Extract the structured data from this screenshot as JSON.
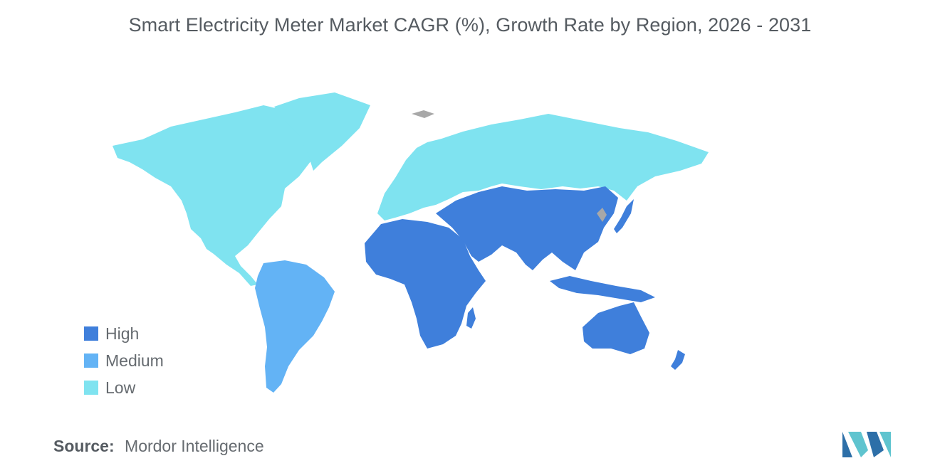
{
  "title": "Smart Electricity Meter Market CAGR (%), Growth Rate by Region, 2026 - 2031",
  "legend": [
    {
      "label": "High",
      "color": "#3f7fdb"
    },
    {
      "label": "Medium",
      "color": "#63b3f5"
    },
    {
      "label": "Low",
      "color": "#7fe3f0"
    }
  ],
  "no_data_color": "#a8a8a8",
  "regions": [
    {
      "name": "North America",
      "level": "Low"
    },
    {
      "name": "Europe",
      "level": "Low"
    },
    {
      "name": "Russia",
      "level": "Low"
    },
    {
      "name": "South America",
      "level": "Medium"
    },
    {
      "name": "Africa",
      "level": "High"
    },
    {
      "name": "Middle East",
      "level": "High"
    },
    {
      "name": "Asia",
      "level": "High"
    },
    {
      "name": "Australia & Oceania",
      "level": "High"
    }
  ],
  "source": {
    "label": "Source:",
    "text": "Mordor Intelligence"
  },
  "logo": {
    "icon": "mordor-intelligence-logo",
    "colors": [
      "#2d6fa8",
      "#5fc4cf"
    ]
  }
}
